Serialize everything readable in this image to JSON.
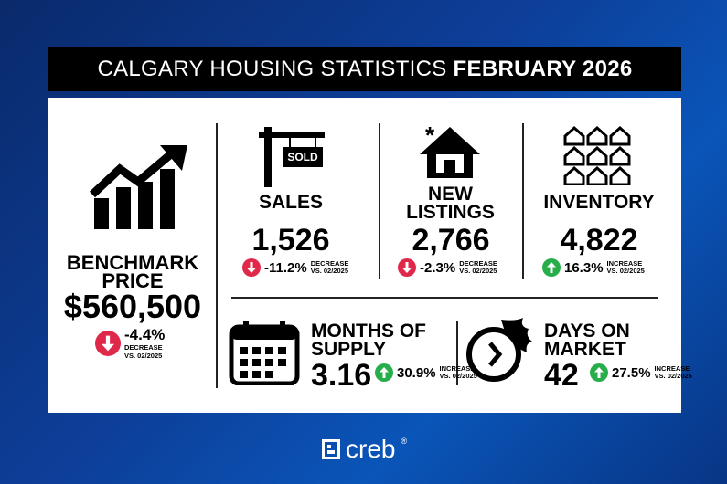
{
  "header": {
    "title": "CALGARY HOUSING STATISTICS",
    "period": "FEBRUARY 2026"
  },
  "sign": "SOLD",
  "stats": [
    {
      "label": "BENCHMARK PRICE",
      "value": "$560,500",
      "change": "-4.4%",
      "direction": "DECREASE",
      "comparison": "VS. 02/2025"
    },
    {
      "label": "SALES",
      "value": "1,526",
      "change": "-11.2%",
      "direction": "DECREASE",
      "comparison": "VS. 02/2025"
    },
    {
      "label": "NEW LISTINGS",
      "value": "2,766",
      "change": "-2.3%",
      "direction": "DECREASE",
      "comparison": "VS. 02/2025"
    },
    {
      "label": "INVENTORY",
      "value": "4,822",
      "change": "16.3%",
      "direction": "INCREASE",
      "comparison": "VS. 02/2025"
    },
    {
      "label": "MONTHS OF SUPPLY",
      "value": "3.16",
      "change": "30.9%",
      "direction": "INCREASE",
      "comparison": "VS. 02/2025"
    },
    {
      "label": "DAYS ON MARKET",
      "value": "42",
      "change": "27.5%",
      "direction": "INCREASE",
      "comparison": "VS. 02/2025"
    }
  ],
  "footer": {
    "logo": "creb",
    "mark": "®"
  }
}
